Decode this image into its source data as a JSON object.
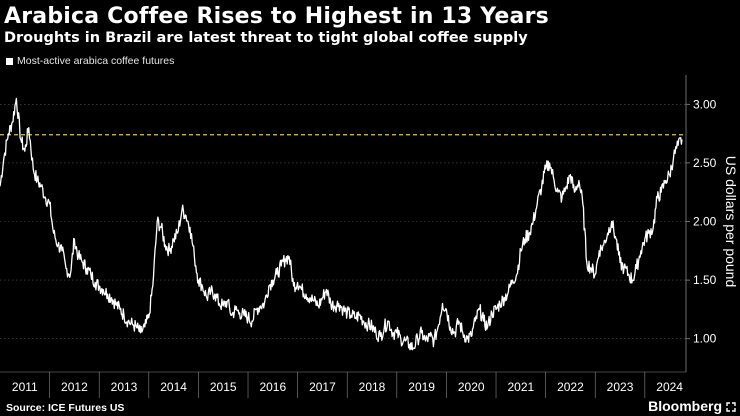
{
  "title": "Arabica Coffee Rises to Highest in 13 Years",
  "subtitle": "Droughts in Brazil are latest threat to tight global coffee supply",
  "legend_label": "Most-active arabica coffee futures",
  "source": "Source: ICE Futures US",
  "brand": "Bloomberg",
  "colors": {
    "background": "#000000",
    "line": "#ffffff",
    "reference": "#d9c63a",
    "grid": "#555555"
  },
  "chart_data": {
    "type": "line",
    "title": "Arabica Coffee Rises to Highest in 13 Years",
    "ylabel": "US dollars per pound",
    "xlabel": "",
    "xlim": [
      2011.0,
      2024.83
    ],
    "ylim": [
      0.75,
      3.25
    ],
    "y_ticks": [
      1.0,
      1.5,
      2.0,
      2.5,
      3.0
    ],
    "y_tick_labels": [
      "1.00",
      "1.50",
      "2.00",
      "2.50",
      "3.00"
    ],
    "x_tick_labels": [
      "2011",
      "2012",
      "2013",
      "2014",
      "2015",
      "2016",
      "2017",
      "2018",
      "2019",
      "2020",
      "2021",
      "2022",
      "2023",
      "2024"
    ],
    "reference_line": {
      "value": 2.74,
      "style": "dashed"
    },
    "series": [
      {
        "name": "Most-active arabica coffee futures",
        "points": [
          [
            2011.0,
            2.3
          ],
          [
            2011.08,
            2.55
          ],
          [
            2011.17,
            2.75
          ],
          [
            2011.25,
            2.85
          ],
          [
            2011.33,
            3.05
          ],
          [
            2011.42,
            2.7
          ],
          [
            2011.5,
            2.6
          ],
          [
            2011.58,
            2.8
          ],
          [
            2011.67,
            2.45
          ],
          [
            2011.75,
            2.35
          ],
          [
            2011.83,
            2.3
          ],
          [
            2011.92,
            2.2
          ],
          [
            2012.0,
            2.15
          ],
          [
            2012.08,
            1.9
          ],
          [
            2012.17,
            1.8
          ],
          [
            2012.25,
            1.75
          ],
          [
            2012.33,
            1.6
          ],
          [
            2012.42,
            1.55
          ],
          [
            2012.5,
            1.85
          ],
          [
            2012.58,
            1.7
          ],
          [
            2012.67,
            1.65
          ],
          [
            2012.75,
            1.6
          ],
          [
            2012.83,
            1.55
          ],
          [
            2012.92,
            1.48
          ],
          [
            2013.0,
            1.45
          ],
          [
            2013.08,
            1.42
          ],
          [
            2013.17,
            1.38
          ],
          [
            2013.25,
            1.35
          ],
          [
            2013.33,
            1.3
          ],
          [
            2013.42,
            1.25
          ],
          [
            2013.5,
            1.2
          ],
          [
            2013.58,
            1.15
          ],
          [
            2013.67,
            1.12
          ],
          [
            2013.75,
            1.1
          ],
          [
            2013.83,
            1.05
          ],
          [
            2013.92,
            1.1
          ],
          [
            2014.0,
            1.18
          ],
          [
            2014.08,
            1.45
          ],
          [
            2014.17,
            2.0
          ],
          [
            2014.25,
            1.95
          ],
          [
            2014.33,
            1.8
          ],
          [
            2014.42,
            1.75
          ],
          [
            2014.5,
            1.85
          ],
          [
            2014.58,
            1.9
          ],
          [
            2014.67,
            2.1
          ],
          [
            2014.75,
            2.05
          ],
          [
            2014.83,
            1.95
          ],
          [
            2014.92,
            1.7
          ],
          [
            2015.0,
            1.5
          ],
          [
            2015.08,
            1.45
          ],
          [
            2015.17,
            1.35
          ],
          [
            2015.25,
            1.4
          ],
          [
            2015.33,
            1.38
          ],
          [
            2015.42,
            1.3
          ],
          [
            2015.5,
            1.28
          ],
          [
            2015.58,
            1.32
          ],
          [
            2015.67,
            1.2
          ],
          [
            2015.75,
            1.25
          ],
          [
            2015.83,
            1.22
          ],
          [
            2015.92,
            1.2
          ],
          [
            2016.0,
            1.18
          ],
          [
            2016.08,
            1.15
          ],
          [
            2016.17,
            1.25
          ],
          [
            2016.25,
            1.28
          ],
          [
            2016.33,
            1.3
          ],
          [
            2016.42,
            1.45
          ],
          [
            2016.5,
            1.5
          ],
          [
            2016.58,
            1.55
          ],
          [
            2016.67,
            1.62
          ],
          [
            2016.75,
            1.68
          ],
          [
            2016.83,
            1.7
          ],
          [
            2016.92,
            1.45
          ],
          [
            2017.0,
            1.48
          ],
          [
            2017.08,
            1.42
          ],
          [
            2017.17,
            1.38
          ],
          [
            2017.25,
            1.35
          ],
          [
            2017.33,
            1.32
          ],
          [
            2017.42,
            1.28
          ],
          [
            2017.5,
            1.35
          ],
          [
            2017.58,
            1.42
          ],
          [
            2017.67,
            1.3
          ],
          [
            2017.75,
            1.28
          ],
          [
            2017.83,
            1.3
          ],
          [
            2017.92,
            1.25
          ],
          [
            2018.0,
            1.22
          ],
          [
            2018.08,
            1.2
          ],
          [
            2018.17,
            1.18
          ],
          [
            2018.25,
            1.2
          ],
          [
            2018.33,
            1.15
          ],
          [
            2018.42,
            1.12
          ],
          [
            2018.5,
            1.1
          ],
          [
            2018.58,
            1.05
          ],
          [
            2018.67,
            1.02
          ],
          [
            2018.75,
            1.1
          ],
          [
            2018.83,
            1.15
          ],
          [
            2018.92,
            1.05
          ],
          [
            2019.0,
            1.05
          ],
          [
            2019.08,
            1.0
          ],
          [
            2019.17,
            0.98
          ],
          [
            2019.25,
            0.95
          ],
          [
            2019.33,
            0.92
          ],
          [
            2019.42,
            1.0
          ],
          [
            2019.5,
            1.05
          ],
          [
            2019.58,
            0.98
          ],
          [
            2019.67,
            1.02
          ],
          [
            2019.75,
            0.98
          ],
          [
            2019.83,
            1.1
          ],
          [
            2019.92,
            1.3
          ],
          [
            2020.0,
            1.25
          ],
          [
            2020.08,
            1.1
          ],
          [
            2020.17,
            1.05
          ],
          [
            2020.25,
            1.15
          ],
          [
            2020.33,
            1.05
          ],
          [
            2020.42,
            1.0
          ],
          [
            2020.5,
            1.02
          ],
          [
            2020.58,
            1.15
          ],
          [
            2020.67,
            1.25
          ],
          [
            2020.75,
            1.15
          ],
          [
            2020.83,
            1.1
          ],
          [
            2020.92,
            1.22
          ],
          [
            2021.0,
            1.25
          ],
          [
            2021.08,
            1.3
          ],
          [
            2021.17,
            1.35
          ],
          [
            2021.25,
            1.4
          ],
          [
            2021.33,
            1.5
          ],
          [
            2021.42,
            1.55
          ],
          [
            2021.5,
            1.75
          ],
          [
            2021.58,
            1.85
          ],
          [
            2021.67,
            1.9
          ],
          [
            2021.75,
            2.0
          ],
          [
            2021.83,
            2.15
          ],
          [
            2021.92,
            2.3
          ],
          [
            2022.0,
            2.45
          ],
          [
            2022.08,
            2.5
          ],
          [
            2022.17,
            2.35
          ],
          [
            2022.25,
            2.25
          ],
          [
            2022.33,
            2.2
          ],
          [
            2022.42,
            2.3
          ],
          [
            2022.5,
            2.4
          ],
          [
            2022.58,
            2.25
          ],
          [
            2022.67,
            2.35
          ],
          [
            2022.75,
            2.15
          ],
          [
            2022.83,
            1.65
          ],
          [
            2022.92,
            1.6
          ],
          [
            2023.0,
            1.55
          ],
          [
            2023.08,
            1.75
          ],
          [
            2023.17,
            1.8
          ],
          [
            2023.25,
            1.9
          ],
          [
            2023.33,
            2.0
          ],
          [
            2023.42,
            1.85
          ],
          [
            2023.5,
            1.65
          ],
          [
            2023.58,
            1.6
          ],
          [
            2023.67,
            1.55
          ],
          [
            2023.75,
            1.5
          ],
          [
            2023.83,
            1.6
          ],
          [
            2023.92,
            1.75
          ],
          [
            2024.0,
            1.85
          ],
          [
            2024.08,
            1.9
          ],
          [
            2024.17,
            1.95
          ],
          [
            2024.25,
            2.2
          ],
          [
            2024.33,
            2.25
          ],
          [
            2024.42,
            2.35
          ],
          [
            2024.5,
            2.4
          ],
          [
            2024.58,
            2.55
          ],
          [
            2024.67,
            2.65
          ],
          [
            2024.75,
            2.7
          ]
        ]
      }
    ]
  }
}
